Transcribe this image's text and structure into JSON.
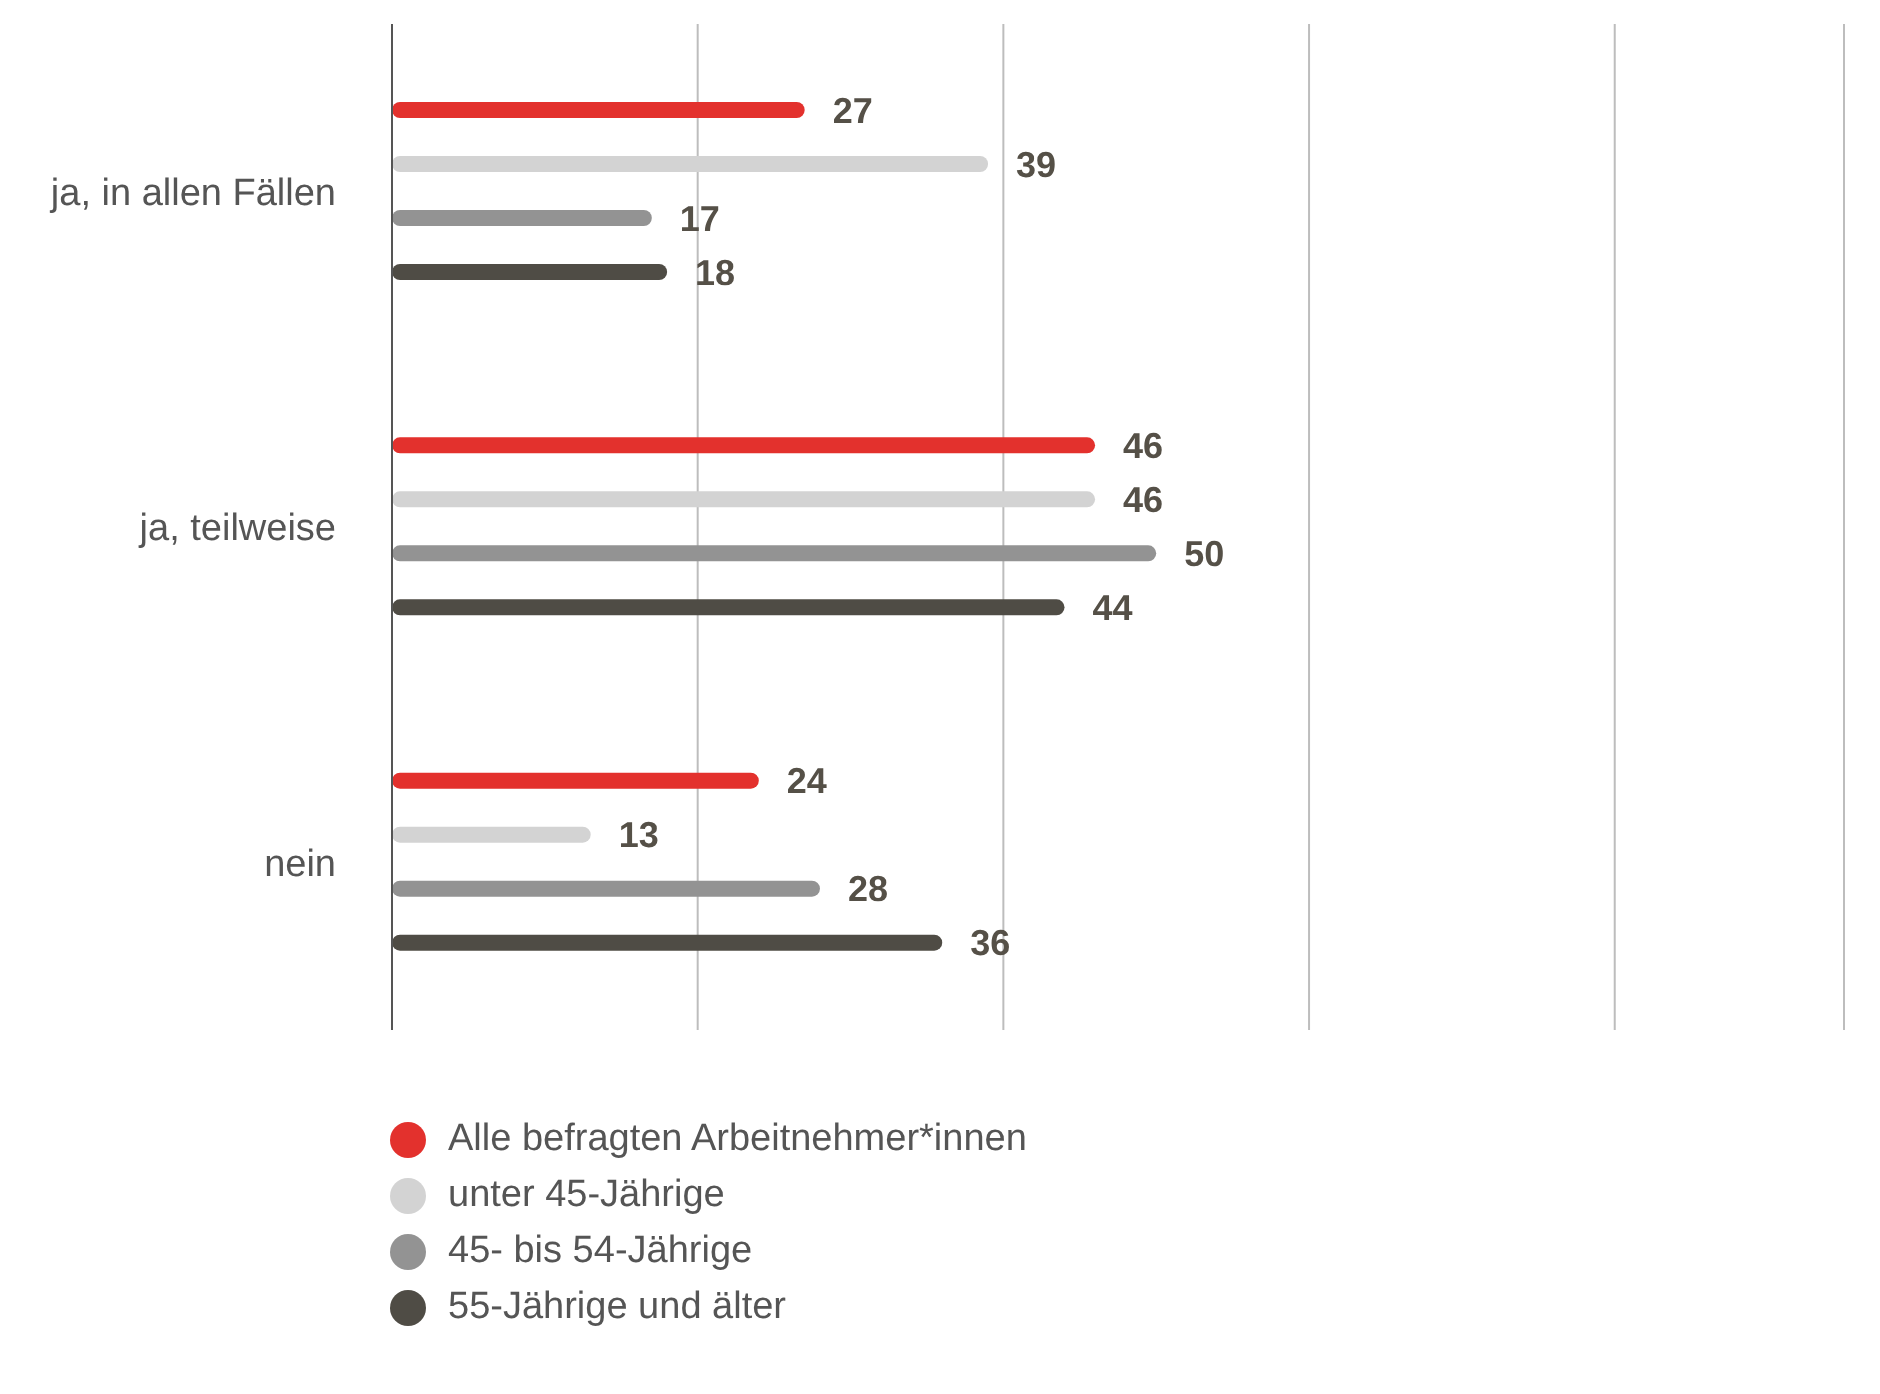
{
  "chart_data": {
    "type": "bar",
    "orientation": "horizontal",
    "categories": [
      "ja, in allen Fällen",
      "ja, teilweise",
      "nein"
    ],
    "series": [
      {
        "name": "Alle befragten Arbeitnehmer*innen",
        "color": "#e3312d",
        "values": [
          27,
          46,
          24
        ]
      },
      {
        "name": "unter 45-Jährige",
        "color": "#d3d3d3",
        "values": [
          39,
          46,
          13
        ]
      },
      {
        "name": "45- bis 54-Jährige",
        "color": "#939393",
        "values": [
          17,
          50,
          28
        ]
      },
      {
        "name": "55-Jährige und älter",
        "color": "#4f4c45",
        "values": [
          18,
          44,
          36
        ]
      }
    ],
    "xlim": [
      0,
      95
    ],
    "xticks": [
      {
        "value": 0,
        "label": null
      },
      {
        "value": 20,
        "label": null
      },
      {
        "value": 40,
        "label": null
      },
      {
        "value": 60,
        "label": null
      },
      {
        "value": 80,
        "label": null
      }
    ],
    "tick_labels": "y",
    "grid": "x",
    "data_labels": true,
    "legend": "bottom left"
  }
}
